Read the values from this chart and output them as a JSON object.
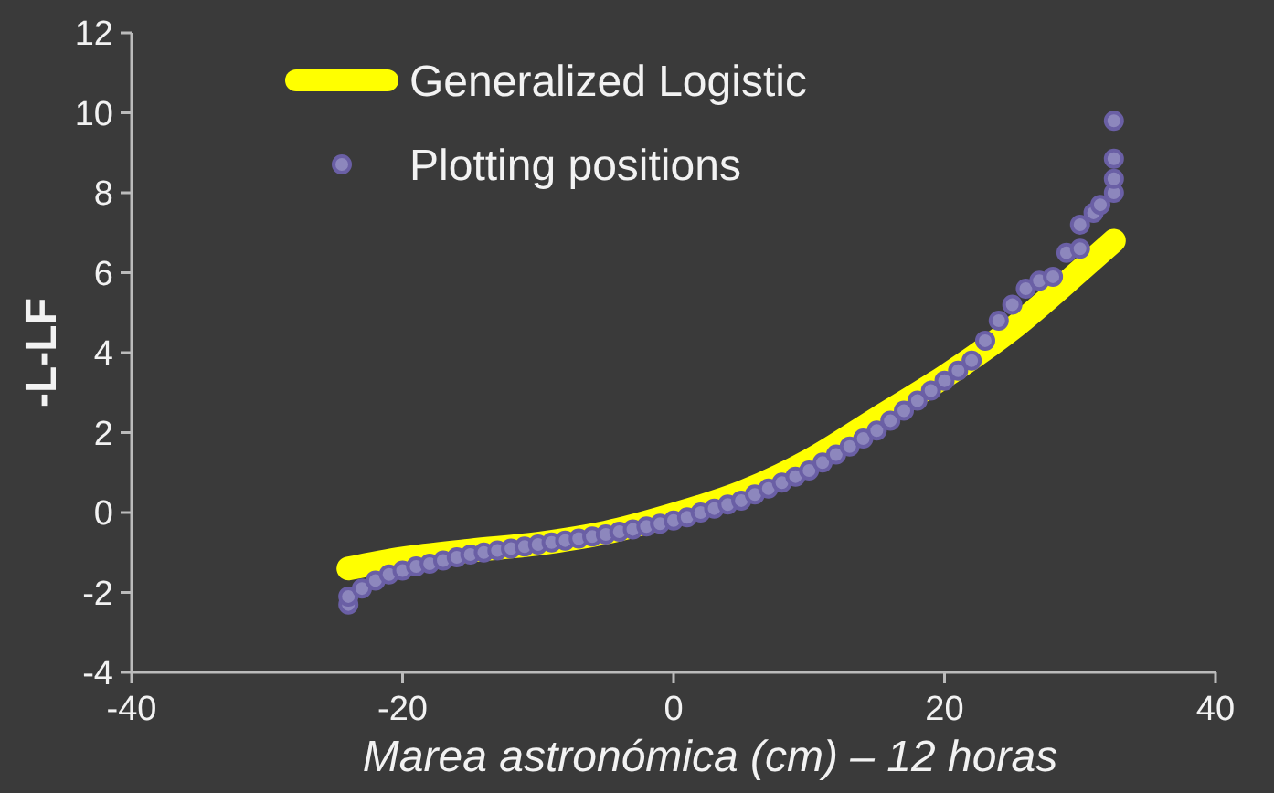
{
  "chart_data": {
    "type": "scatter",
    "xlabel": "Marea astronómica (cm) – 12 horas",
    "ylabel": "-L-LF",
    "xlim": [
      -40,
      40
    ],
    "xticks": [
      -40,
      -20,
      0,
      20,
      40
    ],
    "ylim": [
      -4,
      12
    ],
    "yticks": [
      -4,
      -2,
      0,
      2,
      4,
      6,
      8,
      10,
      12
    ],
    "legend": "top left",
    "grid": false,
    "series": [
      {
        "name": "Generalized Logistic",
        "type": "line",
        "color": "#ffff00",
        "x": [
          -24,
          -20,
          -15,
          -10,
          -5,
          0,
          5,
          10,
          15,
          20,
          25,
          30,
          32.5
        ],
        "values": [
          -1.4,
          -1.15,
          -0.95,
          -0.78,
          -0.5,
          -0.05,
          0.5,
          1.3,
          2.35,
          3.4,
          4.6,
          6.05,
          6.8
        ]
      },
      {
        "name": "Plotting positions",
        "marker": "circle",
        "color": "#6a5fa5",
        "x": [
          -24,
          -24,
          -23,
          -22,
          -21,
          -20,
          -19,
          -18,
          -17,
          -16,
          -15,
          -14,
          -13,
          -12,
          -11,
          -10,
          -9,
          -8,
          -7,
          -6,
          -5,
          -4,
          -3,
          -2,
          -1,
          0,
          1,
          2,
          3,
          4,
          5,
          6,
          7,
          8,
          9,
          10,
          11,
          12,
          13,
          14,
          15,
          16,
          17,
          18,
          19,
          20,
          21,
          22,
          23,
          24,
          25,
          26,
          27,
          28,
          29,
          30,
          30,
          31,
          31.5,
          32.5,
          32.5,
          32.5,
          32.5
        ],
        "values": [
          -2.3,
          -2.1,
          -1.9,
          -1.7,
          -1.55,
          -1.45,
          -1.35,
          -1.28,
          -1.2,
          -1.12,
          -1.05,
          -1.0,
          -0.95,
          -0.9,
          -0.85,
          -0.8,
          -0.75,
          -0.7,
          -0.65,
          -0.6,
          -0.55,
          -0.48,
          -0.42,
          -0.35,
          -0.28,
          -0.2,
          -0.12,
          0,
          0.1,
          0.2,
          0.3,
          0.45,
          0.6,
          0.75,
          0.9,
          1.05,
          1.25,
          1.45,
          1.65,
          1.85,
          2.05,
          2.3,
          2.55,
          2.8,
          3.05,
          3.3,
          3.55,
          3.8,
          4.3,
          4.8,
          5.2,
          5.6,
          5.8,
          5.9,
          6.5,
          6.6,
          7.2,
          7.5,
          7.7,
          8.0,
          8.35,
          8.85,
          9.8
        ]
      }
    ]
  }
}
